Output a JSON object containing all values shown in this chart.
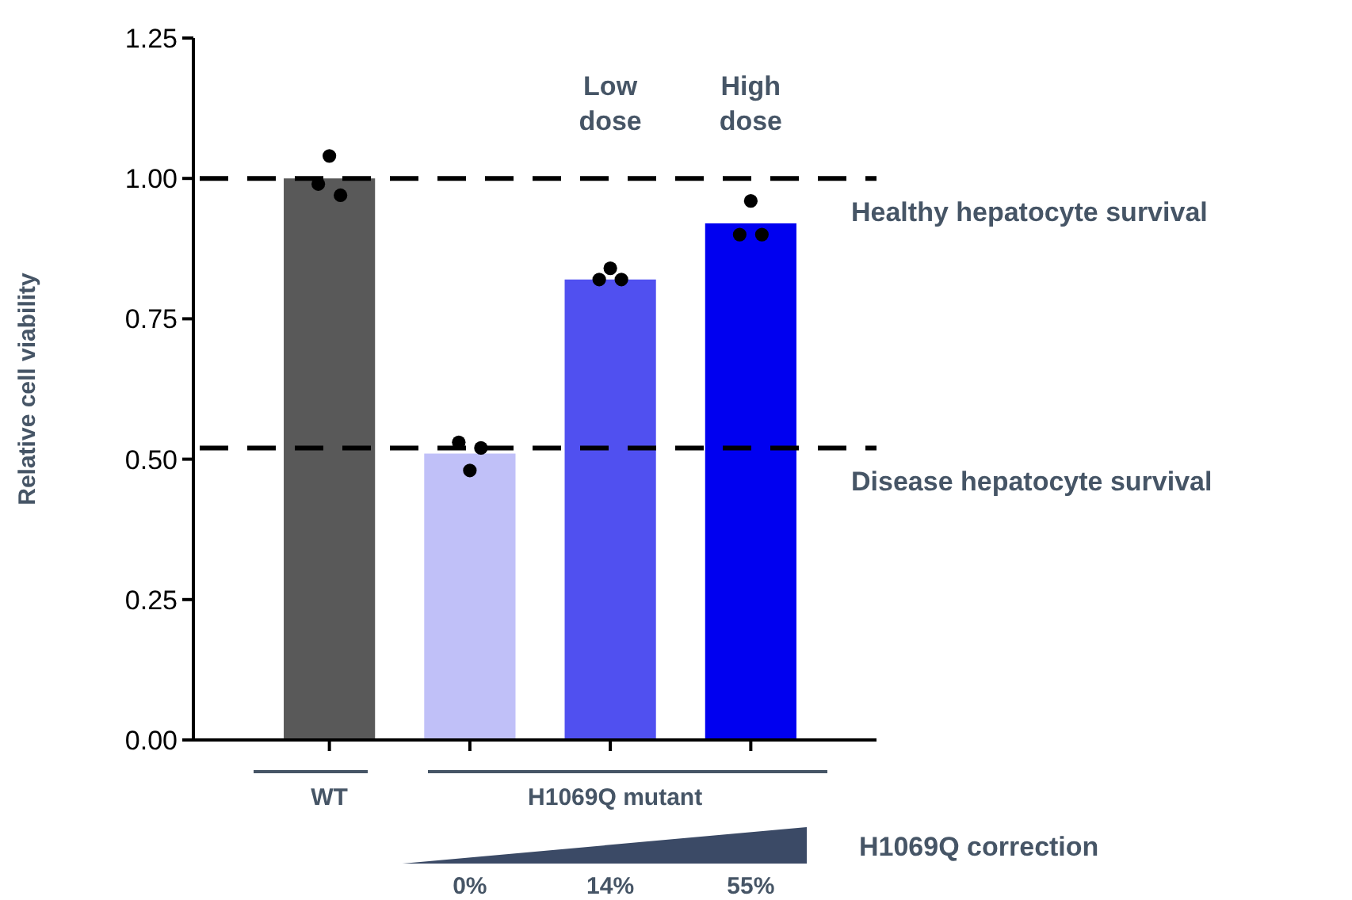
{
  "chart_data": {
    "type": "bar",
    "ylabel": "Relative cell viability",
    "categories": [
      null,
      null,
      null,
      null
    ],
    "series": [
      {
        "type": "bar",
        "values": [
          1.0,
          0.51,
          0.82,
          0.92
        ],
        "colors": [
          "#595959",
          "#c0c0f8",
          "#5050f0",
          "#0000f0"
        ]
      },
      {
        "type": "scatter",
        "color": "#000000",
        "values": [
          0.99,
          0.53,
          0.82,
          0.9
        ]
      },
      {
        "type": "scatter",
        "color": "#000000",
        "values": [
          0.97,
          0.52,
          0.82,
          0.9
        ]
      },
      {
        "type": "scatter",
        "color": "#000000",
        "values": [
          1.04,
          0.48,
          0.84,
          0.96
        ]
      }
    ],
    "marker": "circle",
    "ylim": [
      0,
      1.25
    ],
    "yticks": [
      {
        "value": 0,
        "label": "0.00"
      },
      {
        "value": 0.25,
        "label": "0.25"
      },
      {
        "value": 0.5,
        "label": "0.50"
      },
      {
        "value": 0.75,
        "label": "0.75"
      },
      {
        "value": 1,
        "label": "1.00"
      },
      {
        "value": 1.25,
        "label": "1.25"
      }
    ],
    "ref_lines": [
      {
        "axis": "y",
        "value": 1.0,
        "label": "Healthy hepatocyte survival",
        "color": "#000000",
        "line_style": "dashed"
      },
      {
        "axis": "y",
        "value": 0.52,
        "label": "Disease hepatocyte survival",
        "color": "#000000",
        "line_style": "dashed"
      }
    ],
    "annotations": [
      "Low dose",
      "High dose",
      "WT",
      "H1069Q mutant",
      "H1069Q correction",
      "0%",
      "14%",
      "55%"
    ]
  }
}
